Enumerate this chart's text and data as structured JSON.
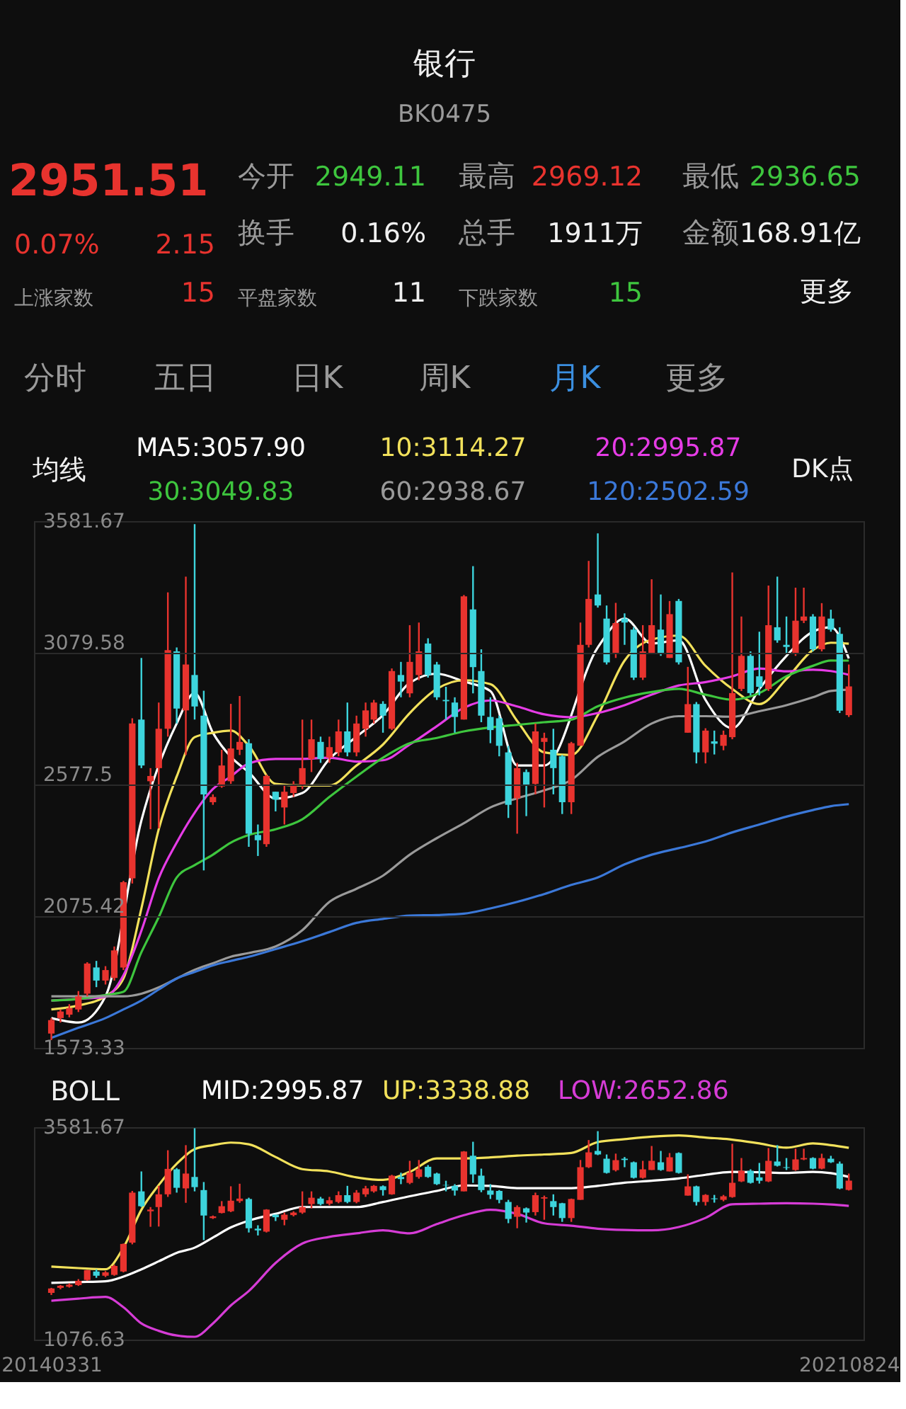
{
  "chart_data": [
    {
      "type": "candlestick",
      "title": "银行",
      "subtitle": "BK0475",
      "annotations": [
        "2951.51",
        "0.07%",
        "2.15",
        "今开",
        "2949.11",
        "最高",
        "2969.12",
        "最低",
        "2936.65",
        "换手",
        "0.16%",
        "总手",
        "1911万",
        "金额",
        "168.91亿",
        "上涨家数",
        "15",
        "平盘家数",
        "11",
        "下跌家数",
        "15",
        "更多",
        "分时",
        "五日",
        "日K",
        "周K",
        "月K",
        "更多",
        "DK点"
      ],
      "legend_title": "均线",
      "legend": "top",
      "x": [
        "2014-03",
        "2014-04",
        "2014-05",
        "2014-06",
        "2014-07",
        "2014-08",
        "2014-09",
        "2014-10",
        "2014-11",
        "2014-12",
        "2015-01",
        "2015-02",
        "2015-03",
        "2015-04",
        "2015-05",
        "2015-06",
        "2015-07",
        "2015-08",
        "2015-09",
        "2015-10",
        "2015-11",
        "2015-12",
        "2016-01",
        "2016-02",
        "2016-03",
        "2016-04",
        "2016-05",
        "2016-06",
        "2016-07",
        "2016-08",
        "2016-09",
        "2016-10",
        "2016-11",
        "2016-12",
        "2017-01",
        "2017-02",
        "2017-03",
        "2017-04",
        "2017-05",
        "2017-06",
        "2017-07",
        "2017-08",
        "2017-09",
        "2017-10",
        "2017-11",
        "2017-12",
        "2018-01",
        "2018-02",
        "2018-03",
        "2018-04",
        "2018-05",
        "2018-06",
        "2018-07",
        "2018-08",
        "2018-09",
        "2018-10",
        "2018-11",
        "2018-12",
        "2019-01",
        "2019-02",
        "2019-03",
        "2019-04",
        "2019-05",
        "2019-06",
        "2019-07",
        "2019-08",
        "2019-09",
        "2019-10",
        "2019-11",
        "2019-12",
        "2020-01",
        "2020-02",
        "2020-03",
        "2020-04",
        "2020-05",
        "2020-06",
        "2020-07",
        "2020-08",
        "2020-09",
        "2020-10",
        "2020-11",
        "2020-12",
        "2021-01",
        "2021-02",
        "2021-03",
        "2021-04",
        "2021-05",
        "2021-06",
        "2021-07",
        "2021-08"
      ],
      "ohlc": [
        [
          1628,
          1687,
          1603,
          1679
        ],
        [
          1687,
          1720,
          1670,
          1712
        ],
        [
          1700,
          1740,
          1690,
          1725
        ],
        [
          1720,
          1790,
          1710,
          1770
        ],
        [
          1780,
          1900,
          1770,
          1895
        ],
        [
          1880,
          1905,
          1805,
          1830
        ],
        [
          1830,
          1885,
          1815,
          1870
        ],
        [
          1840,
          1960,
          1830,
          1945
        ],
        [
          1880,
          2210,
          1870,
          2205
        ],
        [
          2220,
          2830,
          2200,
          2810
        ],
        [
          2825,
          3060,
          2640,
          2650
        ],
        [
          2590,
          2640,
          2407,
          2610
        ],
        [
          2640,
          2890,
          2410,
          2790
        ],
        [
          2790,
          3310,
          2760,
          3090
        ],
        [
          3085,
          3100,
          2810,
          2867
        ],
        [
          2860,
          3370,
          2690,
          3035
        ],
        [
          2995,
          3570,
          2825,
          2875
        ],
        [
          2840,
          2935,
          2250,
          2540
        ],
        [
          2510,
          2540,
          2500,
          2530
        ],
        [
          2570,
          2710,
          2565,
          2650
        ],
        [
          2590,
          2885,
          2580,
          2715
        ],
        [
          2710,
          2915,
          2690,
          2740
        ],
        [
          2735,
          2750,
          2340,
          2390
        ],
        [
          2385,
          2425,
          2305,
          2365
        ],
        [
          2350,
          2615,
          2340,
          2610
        ],
        [
          2550,
          2550,
          2475,
          2520
        ],
        [
          2490,
          2575,
          2425,
          2550
        ],
        [
          2545,
          2590,
          2530,
          2575
        ],
        [
          2575,
          2825,
          2560,
          2640
        ],
        [
          2675,
          2825,
          2625,
          2750
        ],
        [
          2740,
          2760,
          2660,
          2675
        ],
        [
          2680,
          2760,
          2660,
          2720
        ],
        [
          2700,
          2825,
          2685,
          2780
        ],
        [
          2780,
          2890,
          2685,
          2700
        ],
        [
          2700,
          2840,
          2685,
          2810
        ],
        [
          2790,
          2890,
          2760,
          2860
        ],
        [
          2825,
          2900,
          2810,
          2890
        ],
        [
          2885,
          2895,
          2775,
          2840
        ],
        [
          2790,
          3020,
          2785,
          3010
        ],
        [
          2995,
          3045,
          2910,
          2970
        ],
        [
          2925,
          3185,
          2910,
          3045
        ],
        [
          2995,
          3195,
          2975,
          3085
        ],
        [
          3115,
          3135,
          2985,
          2995
        ],
        [
          3035,
          3045,
          2900,
          2910
        ],
        [
          2900,
          2950,
          2825,
          2895
        ],
        [
          2890,
          2910,
          2775,
          2835
        ],
        [
          2825,
          3300,
          2825,
          3295
        ],
        [
          3245,
          3410,
          2925,
          3025
        ],
        [
          3010,
          3093,
          2815,
          2840
        ],
        [
          2835,
          2910,
          2735,
          2785
        ],
        [
          2830,
          2840,
          2685,
          2725
        ],
        [
          2700,
          2725,
          2450,
          2500
        ],
        [
          2525,
          2660,
          2390,
          2640
        ],
        [
          2625,
          2635,
          2457,
          2575
        ],
        [
          2580,
          2810,
          2540,
          2780
        ],
        [
          2740,
          2775,
          2490,
          2755
        ],
        [
          2710,
          2790,
          2540,
          2640
        ],
        [
          2685,
          2690,
          2465,
          2510
        ],
        [
          2510,
          2740,
          2465,
          2735
        ],
        [
          2725,
          3195,
          2725,
          3110
        ],
        [
          3110,
          3430,
          3100,
          3285
        ],
        [
          3302,
          3535,
          3252,
          3260
        ],
        [
          3210,
          3260,
          3035,
          3043
        ],
        [
          3075,
          3270,
          3060,
          3193
        ],
        [
          3210,
          3230,
          3110,
          3195
        ],
        [
          3168,
          3177,
          2976,
          2985
        ],
        [
          2985,
          3185,
          2976,
          3085
        ],
        [
          3077,
          3360,
          3077,
          3185
        ],
        [
          3168,
          3302,
          3068,
          3077
        ],
        [
          3060,
          3277,
          3060,
          3227
        ],
        [
          3277,
          3285,
          3035,
          3043
        ],
        [
          2775,
          3026,
          2775,
          2884
        ],
        [
          2884,
          2892,
          2658,
          2700
        ],
        [
          2700,
          2792,
          2658,
          2783
        ],
        [
          2742,
          2783,
          2692,
          2733
        ],
        [
          2725,
          2783,
          2708,
          2767
        ],
        [
          2758,
          3386,
          2750,
          2926
        ],
        [
          2942,
          3218,
          2934,
          3068
        ],
        [
          3068,
          3085,
          2917,
          2926
        ],
        [
          2990,
          3160,
          2917,
          2950
        ],
        [
          2942,
          3336,
          2934,
          3185
        ],
        [
          3177,
          3370,
          3118,
          3127
        ],
        [
          3110,
          3218,
          3077,
          3102
        ],
        [
          3077,
          3328,
          3068,
          3202
        ],
        [
          3202,
          3328,
          3193,
          3218
        ],
        [
          3218,
          3227,
          3085,
          3093
        ],
        [
          3093,
          3269,
          3085,
          3218
        ],
        [
          3210,
          3244,
          3160,
          3168
        ],
        [
          3152,
          3177,
          2850,
          2859
        ],
        [
          2842,
          3035,
          2835,
          2951.51
        ]
      ],
      "colors": [
        "#e8332e",
        "#e8332e",
        "#e8332e",
        "#e8332e",
        "#e8332e",
        "#3dd4dc",
        "#e8332e",
        "#e8332e",
        "#e8332e",
        "#e8332e",
        "#3dd4dc",
        "#e8332e",
        "#e8332e",
        "#e8332e",
        "#3dd4dc",
        "#e8332e",
        "#3dd4dc",
        "#3dd4dc",
        "#e8332e",
        "#e8332e",
        "#e8332e",
        "#e8332e",
        "#3dd4dc",
        "#3dd4dc",
        "#e8332e",
        "#3dd4dc",
        "#e8332e",
        "#e8332e",
        "#e8332e",
        "#e8332e",
        "#3dd4dc",
        "#e8332e",
        "#e8332e",
        "#3dd4dc",
        "#e8332e",
        "#e8332e",
        "#e8332e",
        "#3dd4dc",
        "#e8332e",
        "#3dd4dc",
        "#e8332e",
        "#e8332e",
        "#3dd4dc",
        "#3dd4dc",
        "#3dd4dc",
        "#3dd4dc",
        "#e8332e",
        "#3dd4dc",
        "#3dd4dc",
        "#3dd4dc",
        "#3dd4dc",
        "#3dd4dc",
        "#e8332e",
        "#3dd4dc",
        "#e8332e",
        "#e8332e",
        "#3dd4dc",
        "#3dd4dc",
        "#e8332e",
        "#e8332e",
        "#e8332e",
        "#3dd4dc",
        "#3dd4dc",
        "#e8332e",
        "#3dd4dc",
        "#3dd4dc",
        "#e8332e",
        "#e8332e",
        "#3dd4dc",
        "#e8332e",
        "#3dd4dc",
        "#e8332e",
        "#3dd4dc",
        "#e8332e",
        "#3dd4dc",
        "#e8332e",
        "#e8332e",
        "#e8332e",
        "#3dd4dc",
        "#3dd4dc",
        "#e8332e",
        "#3dd4dc",
        "#3dd4dc",
        "#e8332e",
        "#e8332e",
        "#3dd4dc",
        "#e8332e",
        "#3dd4dc",
        "#3dd4dc",
        "#e8332e"
      ],
      "series": [
        {
          "name": "MA5:3057.90",
          "type": "line",
          "color": "#ffffff",
          "x": [
            "2014-03",
            "2014-06",
            "2014-09",
            "2014-11",
            "2015-01",
            "2015-03",
            "2015-05",
            "2015-07",
            "2015-09",
            "2015-11",
            "2016-01",
            "2016-04",
            "2016-07",
            "2016-10",
            "2017-01",
            "2017-04",
            "2017-07",
            "2017-10",
            "2018-01",
            "2018-04",
            "2018-07",
            "2018-10",
            "2019-01",
            "2019-04",
            "2019-07",
            "2019-10",
            "2020-01",
            "2020-04",
            "2020-07",
            "2020-10",
            "2021-01",
            "2021-04",
            "2021-06",
            "2021-08"
          ],
          "values": [
            1687,
            1670,
            1770,
            null,
            2440,
            null,
            2810,
            2926,
            2775,
            2683,
            2624,
            2524,
            2545,
            2675,
            2760,
            2842,
            2965,
            3000,
            2970,
            2934,
            2650,
            2650,
            null,
            3100,
            3210,
            3115,
            3127,
            2900,
            2792,
            2942,
            3068,
            3160,
            3177,
            3057.9
          ]
        },
        {
          "name": "10:3114.27",
          "type": "line",
          "color": "#f2e15b",
          "x": [
            "2014-03",
            "2014-06",
            "2014-09",
            "2014-11",
            "2015-01",
            "2015-03",
            "2015-05",
            "2015-07",
            "2015-09",
            "2015-11",
            "2016-01",
            "2016-04",
            "2016-07",
            "2016-10",
            "2017-01",
            "2017-04",
            "2017-07",
            "2017-10",
            "2018-01",
            "2018-04",
            "2018-07",
            "2018-10",
            "2019-01",
            "2019-04",
            "2019-07",
            "2019-10",
            "2020-01",
            "2020-04",
            "2020-07",
            "2020-10",
            "2021-01",
            "2021-04",
            "2021-06",
            "2021-08"
          ],
          "values": [
            1720,
            1735,
            1770,
            1838,
            2105,
            2407,
            2608,
            2758,
            2775,
            2783,
            2725,
            2580,
            2574,
            2574,
            2650,
            2730,
            2850,
            2942,
            2975,
            2960,
            2820,
            2700,
            2690,
            2842,
            3050,
            3130,
            3145,
            3030,
            2942,
            2884,
            2980,
            3090,
            3118,
            3114.27
          ]
        },
        {
          "name": "20:2995.87",
          "type": "line",
          "color": "#e63ce6",
          "x": [
            "2014-03",
            "2014-06",
            "2014-09",
            "2014-11",
            "2015-01",
            "2015-03",
            "2015-05",
            "2015-07",
            "2015-09",
            "2015-11",
            "2016-01",
            "2016-04",
            "2016-07",
            "2016-10",
            "2017-01",
            "2017-04",
            "2017-07",
            "2017-10",
            "2018-01",
            "2018-04",
            "2018-07",
            "2018-10",
            "2019-01",
            "2019-04",
            "2019-07",
            "2019-10",
            "2020-01",
            "2020-04",
            "2020-07",
            "2020-10",
            "2021-01",
            "2021-04",
            "2021-06",
            "2021-08"
          ],
          "values": [
            1754,
            1760,
            1768,
            1850,
            2020,
            2220,
            2356,
            2470,
            2560,
            2608,
            2658,
            2675,
            2675,
            2680,
            2665,
            2670,
            2730,
            2800,
            2870,
            2898,
            2875,
            2845,
            2834,
            2850,
            2880,
            2920,
            2955,
            2968,
            2990,
            3020,
            3009,
            3015,
            3010,
            2995.87
          ]
        },
        {
          "name": "30:3049.83",
          "type": "line",
          "color": "#3ec63e",
          "x": [
            "2014-03",
            "2014-06",
            "2014-09",
            "2014-11",
            "2015-01",
            "2015-03",
            "2015-05",
            "2015-07",
            "2015-09",
            "2015-11",
            "2016-01",
            "2016-04",
            "2016-07",
            "2016-10",
            "2017-01",
            "2017-04",
            "2017-07",
            "2017-10",
            "2018-01",
            "2018-04",
            "2018-07",
            "2018-10",
            "2019-01",
            "2019-04",
            "2019-07",
            "2019-10",
            "2020-01",
            "2020-04",
            "2020-07",
            "2020-10",
            "2021-01",
            "2021-04",
            "2021-06",
            "2021-08"
          ],
          "values": [
            1754,
            1760,
            1775,
            1787,
            1938,
            2072,
            2223,
            2270,
            2310,
            2356,
            2385,
            2407,
            2445,
            2530,
            2608,
            2680,
            2735,
            2755,
            2780,
            2795,
            2805,
            2815,
            2825,
            2876,
            2909,
            2930,
            2942,
            2920,
            2901,
            2926,
            2990,
            3030,
            3050,
            3049.83
          ]
        },
        {
          "name": "60:2938.67",
          "type": "line",
          "color": "#9a9a9a",
          "x": [
            "2014-03",
            "2014-06",
            "2014-09",
            "2014-11",
            "2015-01",
            "2015-03",
            "2015-05",
            "2015-07",
            "2015-09",
            "2015-11",
            "2016-01",
            "2016-04",
            "2016-07",
            "2016-10",
            "2017-01",
            "2017-04",
            "2017-07",
            "2017-10",
            "2018-01",
            "2018-04",
            "2018-07",
            "2018-10",
            "2019-01",
            "2019-04",
            "2019-07",
            "2019-10",
            "2020-01",
            "2020-04",
            "2020-07",
            "2020-10",
            "2021-01",
            "2021-04",
            "2021-06",
            "2021-08"
          ],
          "values": [
            1770,
            1770,
            1770,
            1770,
            1780,
            1804,
            1838,
            1871,
            1896,
            1921,
            1935,
            1960,
            2022,
            2130,
            2180,
            2230,
            2310,
            2373,
            2430,
            2490,
            2525,
            2555,
            2595,
            2683,
            2742,
            2810,
            2838,
            2838,
            2836,
            2857,
            2880,
            2910,
            2934,
            2938.67
          ]
        },
        {
          "name": "120:2502.59",
          "type": "line",
          "color": "#3b78d8",
          "x": [
            "2014-03",
            "2014-06",
            "2014-09",
            "2014-11",
            "2015-01",
            "2015-03",
            "2015-05",
            "2015-07",
            "2015-09",
            "2015-11",
            "2016-01",
            "2016-04",
            "2016-07",
            "2016-10",
            "2017-01",
            "2017-04",
            "2017-07",
            "2017-10",
            "2018-01",
            "2018-04",
            "2018-07",
            "2018-10",
            "2019-01",
            "2019-04",
            "2019-07",
            "2019-10",
            "2020-01",
            "2020-04",
            "2020-07",
            "2020-10",
            "2021-01",
            "2021-04",
            "2021-06",
            "2021-08"
          ],
          "values": [
            1612,
            1650,
            1687,
            1720,
            1754,
            1796,
            1838,
            1863,
            1888,
            1905,
            1921,
            1950,
            1980,
            2015,
            2050,
            2065,
            2078,
            2080,
            2085,
            2105,
            2130,
            2160,
            2195,
            2223,
            2273,
            2310,
            2335,
            2360,
            2395,
            2425,
            2455,
            2480,
            2495,
            2502.59
          ]
        }
      ],
      "xlim": [
        "2014-01-01",
        "2021-09-20"
      ],
      "ylim": [
        1573.33,
        3581.67
      ],
      "yticks": [
        1573.33,
        2075.42,
        2577.5,
        3079.58,
        3581.67
      ],
      "grid": "y",
      "tick_labels": "y"
    },
    {
      "type": "candlestick",
      "legend_title": "BOLL",
      "legend": "top",
      "x": [
        "2014-03",
        "2014-04",
        "2014-05",
        "2014-06",
        "2014-07",
        "2014-08",
        "2014-09",
        "2014-10",
        "2014-11",
        "2014-12",
        "2015-01",
        "2015-02",
        "2015-03",
        "2015-04",
        "2015-05",
        "2015-06",
        "2015-07",
        "2015-08",
        "2015-09",
        "2015-10",
        "2015-11",
        "2015-12",
        "2016-01",
        "2016-02",
        "2016-03",
        "2016-04",
        "2016-05",
        "2016-06",
        "2016-07",
        "2016-08",
        "2016-09",
        "2016-10",
        "2016-11",
        "2016-12",
        "2017-01",
        "2017-02",
        "2017-03",
        "2017-04",
        "2017-05",
        "2017-06",
        "2017-07",
        "2017-08",
        "2017-09",
        "2017-10",
        "2017-11",
        "2017-12",
        "2018-01",
        "2018-02",
        "2018-03",
        "2018-04",
        "2018-05",
        "2018-06",
        "2018-07",
        "2018-08",
        "2018-09",
        "2018-10",
        "2018-11",
        "2018-12",
        "2019-01",
        "2019-02",
        "2019-03",
        "2019-04",
        "2019-05",
        "2019-06",
        "2019-07",
        "2019-08",
        "2019-09",
        "2019-10",
        "2019-11",
        "2019-12",
        "2020-01",
        "2020-02",
        "2020-03",
        "2020-04",
        "2020-05",
        "2020-06",
        "2020-07",
        "2020-08",
        "2020-09",
        "2020-10",
        "2020-11",
        "2020-12",
        "2021-01",
        "2021-02",
        "2021-03",
        "2021-04",
        "2021-05",
        "2021-06",
        "2021-07",
        "2021-08"
      ],
      "ohlc": [
        [
          1628,
          1687,
          1603,
          1679
        ],
        [
          1687,
          1720,
          1670,
          1712
        ],
        [
          1700,
          1740,
          1690,
          1725
        ],
        [
          1720,
          1790,
          1710,
          1770
        ],
        [
          1780,
          1900,
          1770,
          1895
        ],
        [
          1880,
          1905,
          1805,
          1830
        ],
        [
          1830,
          1885,
          1815,
          1870
        ],
        [
          1840,
          1960,
          1830,
          1945
        ],
        [
          1880,
          2210,
          1870,
          2205
        ],
        [
          2220,
          2830,
          2200,
          2810
        ],
        [
          2825,
          3060,
          2640,
          2650
        ],
        [
          2590,
          2640,
          2407,
          2610
        ],
        [
          2640,
          2890,
          2410,
          2790
        ],
        [
          2790,
          3310,
          2760,
          3090
        ],
        [
          3085,
          3100,
          2810,
          2867
        ],
        [
          2860,
          3370,
          2690,
          3035
        ],
        [
          2995,
          3570,
          2825,
          2875
        ],
        [
          2840,
          2935,
          2250,
          2540
        ],
        [
          2510,
          2540,
          2500,
          2530
        ],
        [
          2570,
          2710,
          2565,
          2650
        ],
        [
          2590,
          2885,
          2580,
          2715
        ],
        [
          2710,
          2915,
          2690,
          2740
        ],
        [
          2735,
          2750,
          2340,
          2390
        ],
        [
          2385,
          2425,
          2305,
          2365
        ],
        [
          2350,
          2615,
          2340,
          2610
        ],
        [
          2550,
          2550,
          2475,
          2520
        ],
        [
          2490,
          2575,
          2425,
          2550
        ],
        [
          2545,
          2590,
          2530,
          2575
        ],
        [
          2575,
          2825,
          2560,
          2640
        ],
        [
          2675,
          2825,
          2625,
          2750
        ],
        [
          2740,
          2760,
          2660,
          2675
        ],
        [
          2680,
          2760,
          2660,
          2720
        ],
        [
          2700,
          2825,
          2685,
          2780
        ],
        [
          2780,
          2890,
          2685,
          2700
        ],
        [
          2700,
          2840,
          2685,
          2810
        ],
        [
          2790,
          2890,
          2760,
          2860
        ],
        [
          2825,
          2900,
          2810,
          2890
        ],
        [
          2885,
          2895,
          2775,
          2840
        ],
        [
          2790,
          3020,
          2785,
          3010
        ],
        [
          2995,
          3045,
          2910,
          2970
        ],
        [
          2925,
          3185,
          2910,
          3045
        ],
        [
          2995,
          3195,
          2975,
          3085
        ],
        [
          3115,
          3135,
          2985,
          2995
        ],
        [
          3035,
          3045,
          2900,
          2910
        ],
        [
          2900,
          2950,
          2825,
          2895
        ],
        [
          2890,
          2910,
          2775,
          2835
        ],
        [
          2825,
          3300,
          2825,
          3295
        ],
        [
          3245,
          3410,
          2925,
          3025
        ],
        [
          3010,
          3093,
          2815,
          2840
        ],
        [
          2835,
          2910,
          2735,
          2785
        ],
        [
          2830,
          2840,
          2685,
          2725
        ],
        [
          2700,
          2725,
          2450,
          2500
        ],
        [
          2525,
          2660,
          2390,
          2640
        ],
        [
          2625,
          2635,
          2457,
          2575
        ],
        [
          2580,
          2810,
          2540,
          2780
        ],
        [
          2740,
          2775,
          2490,
          2755
        ],
        [
          2710,
          2790,
          2540,
          2640
        ],
        [
          2685,
          2690,
          2465,
          2510
        ],
        [
          2510,
          2740,
          2465,
          2735
        ],
        [
          2725,
          3195,
          2725,
          3110
        ],
        [
          3110,
          3430,
          3100,
          3285
        ],
        [
          3302,
          3535,
          3252,
          3260
        ],
        [
          3210,
          3260,
          3035,
          3043
        ],
        [
          3075,
          3270,
          3060,
          3193
        ],
        [
          3210,
          3230,
          3110,
          3195
        ],
        [
          3168,
          3177,
          2976,
          2985
        ],
        [
          2985,
          3185,
          2976,
          3085
        ],
        [
          3077,
          3360,
          3077,
          3185
        ],
        [
          3168,
          3302,
          3068,
          3077
        ],
        [
          3060,
          3277,
          3060,
          3227
        ],
        [
          3277,
          3285,
          3035,
          3043
        ],
        [
          2775,
          3026,
          2775,
          2884
        ],
        [
          2884,
          2892,
          2658,
          2700
        ],
        [
          2700,
          2792,
          2658,
          2783
        ],
        [
          2742,
          2783,
          2692,
          2733
        ],
        [
          2725,
          2783,
          2708,
          2767
        ],
        [
          2758,
          3386,
          2750,
          2926
        ],
        [
          2942,
          3218,
          2934,
          3068
        ],
        [
          3068,
          3085,
          2917,
          2926
        ],
        [
          2990,
          3160,
          2917,
          2950
        ],
        [
          2942,
          3336,
          2934,
          3185
        ],
        [
          3177,
          3370,
          3118,
          3127
        ],
        [
          3110,
          3218,
          3077,
          3102
        ],
        [
          3077,
          3328,
          3068,
          3202
        ],
        [
          3202,
          3328,
          3193,
          3218
        ],
        [
          3218,
          3227,
          3085,
          3093
        ],
        [
          3093,
          3269,
          3085,
          3218
        ],
        [
          3210,
          3244,
          3160,
          3168
        ],
        [
          3152,
          3177,
          2850,
          2859
        ],
        [
          2842,
          3035,
          2835,
          2951.51
        ]
      ],
      "colors": [
        "#e8332e",
        "#e8332e",
        "#e8332e",
        "#e8332e",
        "#e8332e",
        "#3dd4dc",
        "#e8332e",
        "#e8332e",
        "#e8332e",
        "#e8332e",
        "#3dd4dc",
        "#e8332e",
        "#e8332e",
        "#e8332e",
        "#3dd4dc",
        "#e8332e",
        "#3dd4dc",
        "#3dd4dc",
        "#e8332e",
        "#e8332e",
        "#e8332e",
        "#e8332e",
        "#3dd4dc",
        "#3dd4dc",
        "#e8332e",
        "#3dd4dc",
        "#e8332e",
        "#e8332e",
        "#e8332e",
        "#e8332e",
        "#3dd4dc",
        "#e8332e",
        "#e8332e",
        "#3dd4dc",
        "#e8332e",
        "#e8332e",
        "#e8332e",
        "#3dd4dc",
        "#e8332e",
        "#3dd4dc",
        "#e8332e",
        "#e8332e",
        "#3dd4dc",
        "#3dd4dc",
        "#3dd4dc",
        "#3dd4dc",
        "#e8332e",
        "#3dd4dc",
        "#3dd4dc",
        "#3dd4dc",
        "#3dd4dc",
        "#3dd4dc",
        "#e8332e",
        "#3dd4dc",
        "#e8332e",
        "#e8332e",
        "#3dd4dc",
        "#3dd4dc",
        "#e8332e",
        "#e8332e",
        "#e8332e",
        "#3dd4dc",
        "#3dd4dc",
        "#e8332e",
        "#3dd4dc",
        "#3dd4dc",
        "#e8332e",
        "#e8332e",
        "#3dd4dc",
        "#e8332e",
        "#3dd4dc",
        "#e8332e",
        "#3dd4dc",
        "#e8332e",
        "#3dd4dc",
        "#e8332e",
        "#e8332e",
        "#e8332e",
        "#3dd4dc",
        "#3dd4dc",
        "#e8332e",
        "#3dd4dc",
        "#3dd4dc",
        "#e8332e",
        "#e8332e",
        "#3dd4dc",
        "#e8332e",
        "#3dd4dc",
        "#3dd4dc",
        "#e8332e"
      ],
      "series": [
        {
          "name": "MID:2995.87",
          "type": "line",
          "color": "#ffffff",
          "x": [
            "2014-03",
            "2014-06",
            "2014-09",
            "2014-11",
            "2015-01",
            "2015-03",
            "2015-05",
            "2015-07",
            "2015-09",
            "2015-11",
            "2016-01",
            "2016-04",
            "2016-07",
            "2016-10",
            "2017-01",
            "2017-04",
            "2017-07",
            "2017-10",
            "2018-01",
            "2018-04",
            "2018-07",
            "2018-10",
            "2019-01",
            "2019-04",
            "2019-07",
            "2019-10",
            "2020-01",
            "2020-04",
            "2020-07",
            "2020-10",
            "2021-01",
            "2021-04",
            "2021-06",
            "2021-08"
          ],
          "values": [
            1746,
            1755,
            1765,
            1820,
            1906,
            2000,
            2100,
            2161,
            2280,
            2400,
            2480,
            2560,
            2640,
            2640,
            2640,
            2700,
            2768,
            2830,
            2895,
            2890,
            2863,
            2863,
            2863,
            2890,
            2927,
            2950,
            2978,
            3020,
            3055,
            3050,
            3042,
            3055,
            3040,
            2995.87
          ]
        },
        {
          "name": "UP:3338.88",
          "type": "line",
          "color": "#f2e15b",
          "x": [
            "2014-03",
            "2014-06",
            "2014-09",
            "2014-11",
            "2015-01",
            "2015-03",
            "2015-05",
            "2015-07",
            "2015-09",
            "2015-11",
            "2016-01",
            "2016-04",
            "2016-07",
            "2016-10",
            "2017-01",
            "2017-04",
            "2017-07",
            "2017-10",
            "2018-01",
            "2018-04",
            "2018-07",
            "2018-10",
            "2019-01",
            "2019-04",
            "2019-07",
            "2019-10",
            "2020-01",
            "2020-04",
            "2020-07",
            "2020-10",
            "2021-01",
            "2021-04",
            "2021-06",
            "2021-08"
          ],
          "values": [
            1938,
            1920,
            1906,
            2161,
            2608,
            2900,
            3150,
            3323,
            3370,
            3400,
            3380,
            3230,
            3087,
            3060,
            2990,
            2960,
            3055,
            3214,
            3214,
            3225,
            3246,
            3260,
            3278,
            3406,
            3440,
            3470,
            3485,
            3460,
            3435,
            3390,
            3340,
            3390,
            3370,
            3338.88
          ]
        },
        {
          "name": "LOW:2652.86",
          "type": "line",
          "color": "#d63cd6",
          "x": [
            "2014-03",
            "2014-06",
            "2014-09",
            "2014-11",
            "2015-01",
            "2015-03",
            "2015-05",
            "2015-07",
            "2015-09",
            "2015-11",
            "2016-01",
            "2016-04",
            "2016-07",
            "2016-10",
            "2017-01",
            "2017-04",
            "2017-07",
            "2017-10",
            "2018-01",
            "2018-04",
            "2018-07",
            "2018-10",
            "2019-01",
            "2019-04",
            "2019-07",
            "2019-10",
            "2020-01",
            "2020-04",
            "2020-07",
            "2020-10",
            "2021-01",
            "2021-04",
            "2021-06",
            "2021-08"
          ],
          "values": [
            1535,
            1560,
            1580,
            1459,
            1267,
            1180,
            1125,
            1110,
            1267,
            1480,
            1650,
            1980,
            2210,
            2289,
            2330,
            2365,
            2330,
            2440,
            2544,
            2608,
            2560,
            2448,
            2420,
            2385,
            2370,
            2365,
            2404,
            2512,
            2672,
            2680,
            2685,
            2680,
            2670,
            2652.86
          ]
        }
      ],
      "xlim": [
        "2014-01-01",
        "2021-09-20"
      ],
      "xticks": [
        {
          "value": "2014-03",
          "label": "20140331"
        },
        {
          "value": "2021-08",
          "label": "20210824"
        }
      ],
      "ylim": [
        1076.63,
        3581.67
      ],
      "yticks": [
        1076.63,
        3581.67
      ]
    }
  ]
}
